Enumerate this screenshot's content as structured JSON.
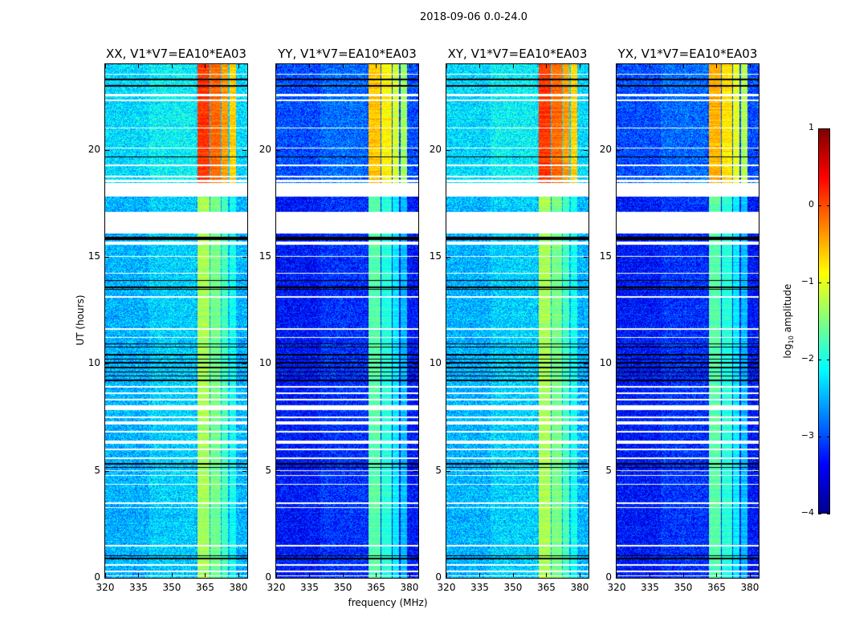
{
  "chart_data": {
    "type": "heatmap",
    "title": "2018-09-06 0.0-24.0",
    "xlabel": "frequency (MHz)",
    "ylabel": "UT (hours)",
    "xlim": [
      320,
      384
    ],
    "ylim": [
      0,
      24
    ],
    "xticks": [
      320,
      335,
      350,
      365,
      380
    ],
    "yticks": [
      0,
      5,
      10,
      15,
      20
    ],
    "colormap": "jet",
    "colorbar": {
      "label_prefix": "log",
      "label_sub": "10",
      "label_suffix": " amplitude",
      "range": [
        -4,
        1
      ],
      "ticks": [
        "1",
        "0",
        "−1",
        "−2",
        "−3",
        "−4"
      ]
    },
    "bands_mhz": [
      [
        361.5,
        367.0
      ],
      [
        367.5,
        372.0
      ],
      [
        372.5,
        375.5
      ],
      [
        376.0,
        379.0
      ]
    ],
    "regime_split_hours": 18.4,
    "flagged_white_hours": [
      [
        23.5,
        23.55
      ],
      [
        22.5,
        22.62
      ],
      [
        22.28,
        22.35
      ],
      [
        21.0,
        21.05
      ],
      [
        20.05,
        20.1
      ],
      [
        19.25,
        19.3
      ],
      [
        18.7,
        18.78
      ],
      [
        18.5,
        18.6
      ],
      [
        17.8,
        18.45
      ],
      [
        16.1,
        17.1
      ],
      [
        15.55,
        15.72
      ],
      [
        15.0,
        15.05
      ],
      [
        14.2,
        14.25
      ],
      [
        13.1,
        13.15
      ],
      [
        11.6,
        11.65
      ],
      [
        11.2,
        11.25
      ],
      [
        8.9,
        8.95
      ],
      [
        8.6,
        8.68
      ],
      [
        8.3,
        8.36
      ],
      [
        7.85,
        8.05
      ],
      [
        7.45,
        7.52
      ],
      [
        7.15,
        7.3
      ],
      [
        6.78,
        6.85
      ],
      [
        6.25,
        6.4
      ],
      [
        5.95,
        6.02
      ],
      [
        5.55,
        5.62
      ],
      [
        4.98,
        5.02
      ],
      [
        4.75,
        4.8
      ],
      [
        4.35,
        4.4
      ],
      [
        3.45,
        3.52
      ],
      [
        3.25,
        3.3
      ],
      [
        1.45,
        1.52
      ],
      [
        0.58,
        0.65
      ],
      [
        0.28,
        0.34
      ],
      [
        0.08,
        0.12
      ]
    ],
    "flagged_black_hours": [
      [
        23.25,
        23.32
      ],
      [
        22.95,
        23.02
      ],
      [
        19.65,
        19.7
      ],
      [
        16.45,
        16.55
      ],
      [
        15.8,
        15.92
      ],
      [
        13.88,
        13.93
      ],
      [
        13.55,
        13.62
      ],
      [
        13.45,
        13.5
      ],
      [
        10.9,
        10.95
      ],
      [
        10.75,
        10.8
      ],
      [
        10.6,
        10.63
      ],
      [
        10.4,
        10.45
      ],
      [
        10.2,
        10.25
      ],
      [
        10.0,
        10.08
      ],
      [
        9.8,
        9.85
      ],
      [
        9.6,
        9.65
      ],
      [
        9.4,
        9.45
      ],
      [
        9.2,
        9.25
      ],
      [
        5.3,
        5.35
      ],
      [
        5.12,
        5.16
      ],
      [
        1.02,
        1.06
      ],
      [
        0.88,
        0.92
      ],
      [
        0.78,
        0.8
      ]
    ],
    "panels": [
      {
        "title": "XX, V1*V7=EA10*EA03",
        "background_level_late": -2.3,
        "band_level_late": 0.1,
        "background_level_early": -2.5,
        "band_level_early": -1.3
      },
      {
        "title": "YY, V1*V7=EA10*EA03",
        "background_level_late": -3.0,
        "band_level_late": -0.6,
        "background_level_early": -3.3,
        "band_level_early": -1.7
      },
      {
        "title": "XY, V1*V7=EA10*EA03",
        "background_level_late": -2.3,
        "band_level_late": 0.1,
        "background_level_early": -2.5,
        "band_level_early": -1.3
      },
      {
        "title": "YX, V1*V7=EA10*EA03",
        "background_level_late": -3.0,
        "band_level_late": -0.5,
        "background_level_early": -3.3,
        "band_level_early": -1.7
      }
    ]
  }
}
